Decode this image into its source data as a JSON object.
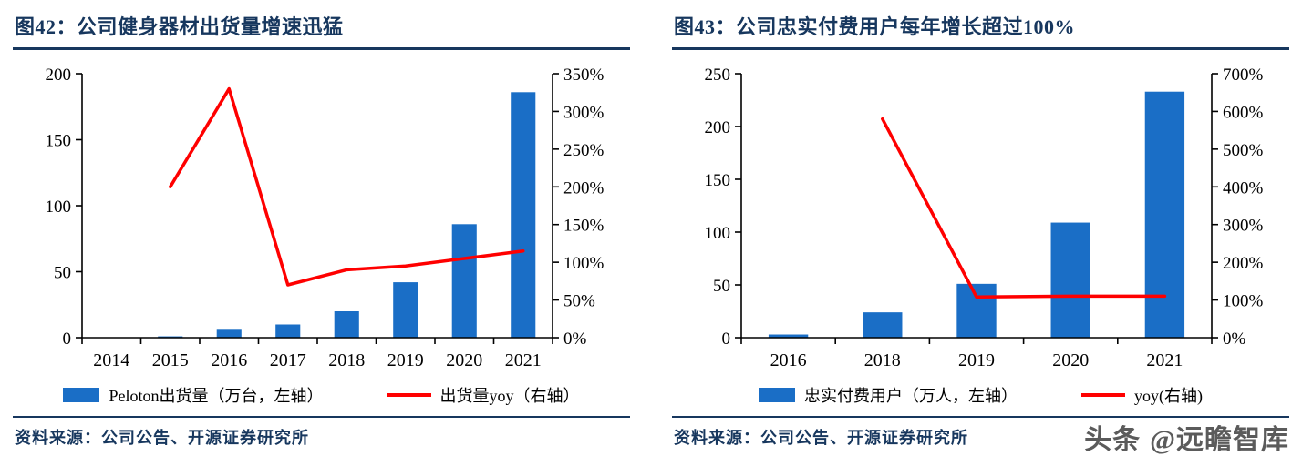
{
  "colors": {
    "bar": "#1A6EC6",
    "line": "#FF0000",
    "navy": "#17375E"
  },
  "panels": [
    {
      "source": "资料来源：公司公告、开源证券研究所"
    },
    {
      "source": "资料来源：公司公告、开源证券研究所"
    }
  ],
  "watermark": {
    "brand": "头条",
    "handle": "@远瞻智库"
  },
  "chart_data": [
    {
      "type": "bar",
      "subtype": "bar-line-combo",
      "title": "图42：公司健身器材出货量增速迅猛",
      "categories": [
        "2014",
        "2015",
        "2016",
        "2017",
        "2018",
        "2019",
        "2020",
        "2021"
      ],
      "series": [
        {
          "name": "Peloton出货量（万台，左轴）",
          "type": "bar",
          "axis": "left",
          "values": [
            0,
            1,
            6,
            10,
            20,
            42,
            86,
            186
          ]
        },
        {
          "name": "出货量yoy（右轴）",
          "type": "line",
          "axis": "right",
          "values": [
            null,
            200,
            330,
            70,
            90,
            95,
            105,
            115
          ]
        }
      ],
      "left_axis": {
        "min": 0,
        "max": 200,
        "ticks": [
          0,
          50,
          100,
          150,
          200
        ]
      },
      "right_axis": {
        "min": 0,
        "max": 350,
        "ticks": [
          "0%",
          "50%",
          "100%",
          "150%",
          "200%",
          "250%",
          "300%",
          "350%"
        ]
      },
      "grid": false,
      "legend_position": "bottom"
    },
    {
      "type": "bar",
      "subtype": "bar-line-combo",
      "title": "图43：公司忠实付费用户每年增长超过100%",
      "categories": [
        "2016",
        "2018",
        "2019",
        "2020",
        "2021"
      ],
      "series": [
        {
          "name": "忠实付费用户（万人，左轴）",
          "type": "bar",
          "axis": "left",
          "values": [
            3,
            24,
            51,
            109,
            233
          ]
        },
        {
          "name": "yoy(右轴)",
          "type": "line",
          "axis": "right",
          "values": [
            null,
            580,
            108,
            110,
            110
          ]
        }
      ],
      "left_axis": {
        "min": 0,
        "max": 250,
        "ticks": [
          0,
          50,
          100,
          150,
          200,
          250
        ]
      },
      "right_axis": {
        "min": 0,
        "max": 700,
        "ticks": [
          "0%",
          "100%",
          "200%",
          "300%",
          "400%",
          "500%",
          "600%",
          "700%"
        ]
      },
      "grid": false,
      "legend_position": "bottom"
    }
  ]
}
